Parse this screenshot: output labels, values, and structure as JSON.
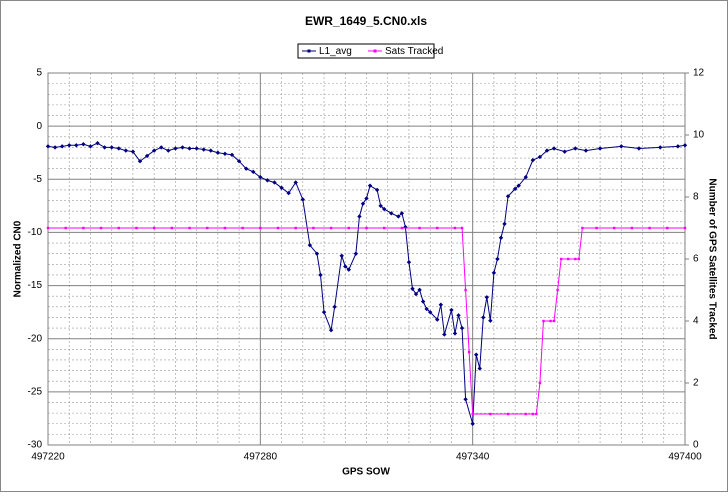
{
  "chart_data": {
    "type": "line",
    "title": "EWR_1649_5.CN0.xls",
    "x_label": "GPS SOW",
    "y_label": "Normalized CN0",
    "y2_label": "Number of GPS Satellites Tracked",
    "xlim": [
      497220,
      497400
    ],
    "xticks": [
      497220,
      497280,
      497340,
      497400
    ],
    "ylim": [
      -30,
      5
    ],
    "yticks": [
      -30,
      -25,
      -20,
      -15,
      -10,
      -5,
      0,
      5
    ],
    "y2lim": [
      0,
      12
    ],
    "y2ticks": [
      0,
      2,
      4,
      6,
      8,
      10,
      12
    ],
    "grid": true,
    "legend": "top",
    "series": [
      {
        "name": "L1_avg",
        "color": "#000080",
        "x": [
          497220,
          497222,
          497224,
          497226,
          497228,
          497230,
          497232,
          497234,
          497236,
          497238,
          497240,
          497242,
          497244,
          497246,
          497248,
          497250,
          497252,
          497254,
          497256,
          497258,
          497260,
          497262,
          497264,
          497266,
          497268,
          497270,
          497272,
          497274,
          497276,
          497278,
          497280,
          497282,
          497284,
          497286,
          497288,
          497290,
          497292,
          497294,
          497296,
          497297,
          497298,
          497300,
          497301,
          497303,
          497304,
          497305,
          497307,
          497308,
          497309,
          497310,
          497311,
          497313,
          497314,
          497315,
          497317,
          497319,
          497320,
          497321,
          497322,
          497323,
          497324,
          497325,
          497326,
          497327,
          497328,
          497330,
          497331,
          497332,
          497334,
          497335,
          497336,
          497337,
          497338,
          497340,
          497341,
          497342,
          497343,
          497344,
          497345,
          497346,
          497347,
          497348,
          497349,
          497350,
          497352,
          497353,
          497355,
          497357,
          497359,
          497361,
          497363,
          497366,
          497369,
          497372,
          497376,
          497382,
          497387,
          497393,
          497398,
          497400
        ],
        "values": [
          -1.9,
          -2.0,
          -1.9,
          -1.8,
          -1.8,
          -1.7,
          -1.9,
          -1.6,
          -2.0,
          -2.0,
          -2.1,
          -2.3,
          -2.4,
          -3.3,
          -2.8,
          -2.3,
          -2.0,
          -2.3,
          -2.1,
          -2.0,
          -2.1,
          -2.1,
          -2.2,
          -2.3,
          -2.5,
          -2.6,
          -2.7,
          -3.3,
          -4.0,
          -4.3,
          -4.8,
          -5.1,
          -5.3,
          -5.8,
          -6.3,
          -5.3,
          -6.9,
          -11.2,
          -12.0,
          -14.0,
          -17.5,
          -19.2,
          -17.0,
          -12.2,
          -13.2,
          -13.5,
          -12.0,
          -8.5,
          -7.3,
          -6.8,
          -5.6,
          -6.0,
          -7.5,
          -7.8,
          -8.2,
          -8.5,
          -8.2,
          -9.5,
          -12.8,
          -15.3,
          -15.8,
          -15.4,
          -16.5,
          -17.2,
          -17.5,
          -18.2,
          -16.8,
          -19.6,
          -17.3,
          -19.5,
          -17.8,
          -19.0,
          -25.7,
          -28.0,
          -21.5,
          -22.8,
          -18.0,
          -16.1,
          -18.3,
          -13.8,
          -12.5,
          -10.5,
          -9.2,
          -6.6,
          -5.9,
          -5.6,
          -4.8,
          -3.2,
          -2.9,
          -2.3,
          -2.1,
          -2.4,
          -2.1,
          -2.3,
          -2.1,
          -1.9,
          -2.1,
          -2.0,
          -1.9,
          -1.8
        ]
      },
      {
        "name": "Sats Tracked",
        "color": "#ff00ff",
        "axis": "y2",
        "x": [
          497220,
          497225,
          497230,
          497235,
          497240,
          497245,
          497250,
          497255,
          497260,
          497265,
          497270,
          497275,
          497280,
          497285,
          497290,
          497295,
          497300,
          497305,
          497310,
          497315,
          497320,
          497325,
          497330,
          497335,
          497337,
          497338,
          497339,
          497340,
          497345,
          497350,
          497355,
          497357,
          497358,
          497359,
          497360,
          497362,
          497363,
          497364,
          497365,
          497367,
          497369,
          497370,
          497371,
          497375,
          497380,
          497385,
          497390,
          497395,
          497400
        ],
        "values": [
          7,
          7,
          7,
          7,
          7,
          7,
          7,
          7,
          7,
          7,
          7,
          7,
          7,
          7,
          7,
          7,
          7,
          7,
          7,
          7,
          7,
          7,
          7,
          7,
          7,
          5,
          3,
          1,
          1,
          1,
          1,
          1,
          1,
          2,
          4,
          4,
          4,
          5,
          6,
          6,
          6,
          6,
          7,
          7,
          7,
          7,
          7,
          7,
          7
        ]
      }
    ]
  }
}
